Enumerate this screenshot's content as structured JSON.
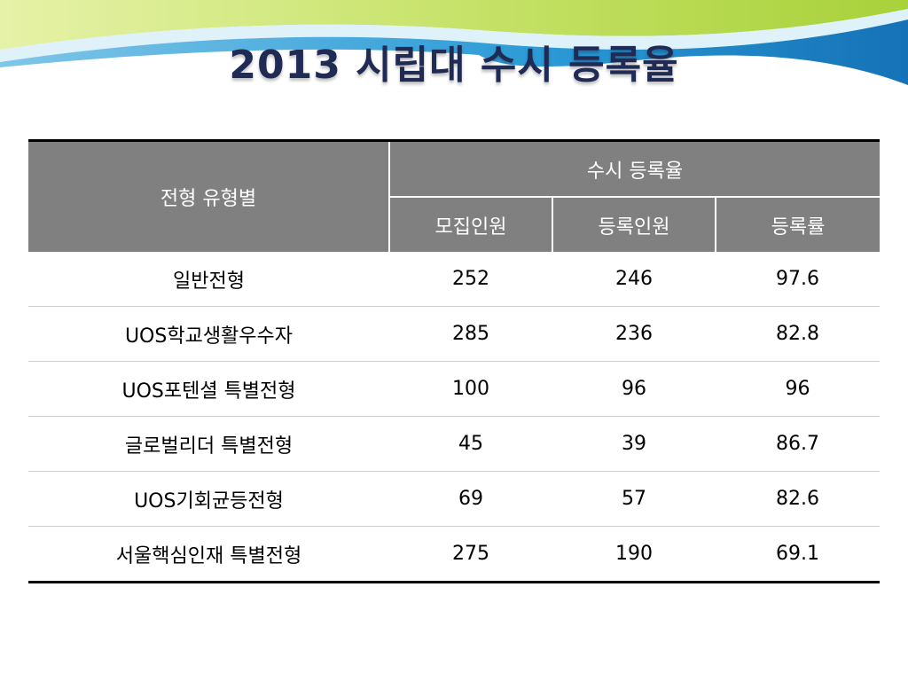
{
  "slide": {
    "title": "2013 시립대 수시 등록율"
  },
  "table": {
    "header": {
      "row_label": "전형 유형별",
      "group_label": "수시 등록율",
      "columns": [
        "모집인원",
        "등록인원",
        "등록률"
      ]
    },
    "rows": [
      {
        "type": "일반전형",
        "recruited": "252",
        "registered": "246",
        "rate": "97.6"
      },
      {
        "type": "UOS학교생활우수자",
        "recruited": "285",
        "registered": "236",
        "rate": "82.8"
      },
      {
        "type": "UOS포텐셜 특별전형",
        "recruited": "100",
        "registered": "96",
        "rate": "96"
      },
      {
        "type": "글로벌리더 특별전형",
        "recruited": "45",
        "registered": "39",
        "rate": "86.7"
      },
      {
        "type": "UOS기회균등전형",
        "recruited": "69",
        "registered": "57",
        "rate": "82.6"
      },
      {
        "type": "서울핵심인재 특별전형",
        "recruited": "275",
        "registered": "190",
        "rate": "69.1"
      }
    ]
  },
  "colors": {
    "header_background": "#808080",
    "header_text": "#ffffff",
    "title_text": "#1f2a55",
    "wave_green": "#b8d940",
    "wave_blue": "#1f8ecf"
  }
}
